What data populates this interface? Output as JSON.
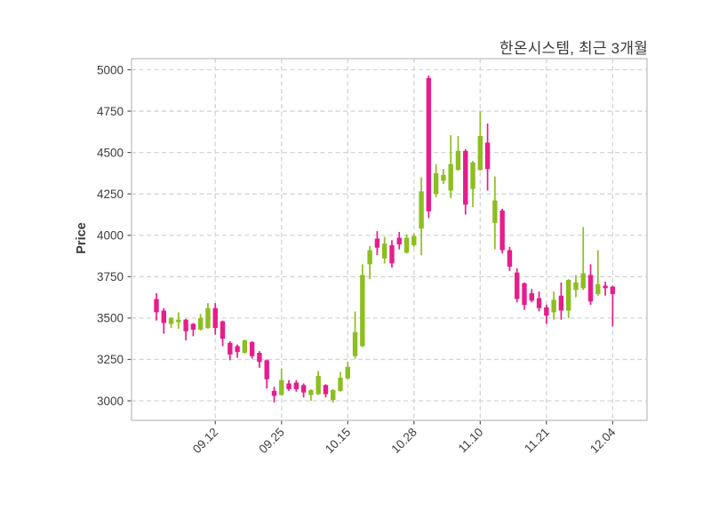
{
  "title": "한온시스템, 최근 3개월",
  "ylabel": "Price",
  "colors": {
    "up": "#8dbe22",
    "down": "#e61d8d",
    "grid": "#d4d4d4",
    "border": "#c9c9c9",
    "tick": "#555555",
    "text": "#3d3d3d",
    "background": "#ffffff"
  },
  "chart_data": {
    "type": "candlestick",
    "title": "한온시스템, 최근 3개월",
    "ylabel": "Price",
    "xlabel": "",
    "grid": true,
    "grid_style": "dashed",
    "ylim": [
      2860,
      5060
    ],
    "yticks": [
      3000,
      3250,
      3500,
      3750,
      4000,
      4250,
      4500,
      4750,
      5000
    ],
    "xtick_labels": [
      "09.12",
      "09.25",
      "10.15",
      "10.28",
      "11.10",
      "11.21",
      "12.04"
    ],
    "xtick_indices": [
      8,
      17,
      26,
      35,
      44,
      53,
      62
    ],
    "up_color_meaning": "close >= open",
    "down_color_meaning": "close < open",
    "ohlc": [
      [
        3615,
        3650,
        3485,
        3535
      ],
      [
        3545,
        3560,
        3405,
        3470
      ],
      [
        3465,
        3505,
        3440,
        3500
      ],
      [
        3475,
        3535,
        3435,
        3490
      ],
      [
        3490,
        3495,
        3365,
        3420
      ],
      [
        3465,
        3470,
        3390,
        3430
      ],
      [
        3430,
        3525,
        3425,
        3500
      ],
      [
        3440,
        3590,
        3435,
        3560
      ],
      [
        3560,
        3590,
        3400,
        3440
      ],
      [
        3480,
        3485,
        3330,
        3375
      ],
      [
        3350,
        3360,
        3245,
        3280
      ],
      [
        3330,
        3340,
        3260,
        3295
      ],
      [
        3290,
        3370,
        3285,
        3365
      ],
      [
        3355,
        3360,
        3255,
        3270
      ],
      [
        3290,
        3300,
        3200,
        3235
      ],
      [
        3245,
        3250,
        3075,
        3130
      ],
      [
        3060,
        3085,
        2990,
        3030
      ],
      [
        3035,
        3195,
        3030,
        3125
      ],
      [
        3105,
        3125,
        3060,
        3070
      ],
      [
        3110,
        3125,
        3055,
        3070
      ],
      [
        3095,
        3105,
        3020,
        3050
      ],
      [
        3035,
        3070,
        3000,
        3065
      ],
      [
        3040,
        3180,
        3035,
        3150
      ],
      [
        3095,
        3100,
        3020,
        3040
      ],
      [
        3005,
        3070,
        2990,
        3065
      ],
      [
        3060,
        3175,
        3055,
        3140
      ],
      [
        3135,
        3235,
        3130,
        3205
      ],
      [
        3270,
        3540,
        3255,
        3415
      ],
      [
        3330,
        3825,
        3325,
        3760
      ],
      [
        3825,
        3935,
        3735,
        3910
      ],
      [
        3980,
        4025,
        3880,
        3925
      ],
      [
        3860,
        3990,
        3830,
        3950
      ],
      [
        3940,
        3970,
        3805,
        3830
      ],
      [
        3985,
        4020,
        3915,
        3945
      ],
      [
        3895,
        4005,
        3890,
        3985
      ],
      [
        3940,
        4010,
        3930,
        3995
      ],
      [
        4040,
        4350,
        3880,
        4265
      ],
      [
        4950,
        4965,
        4105,
        4145
      ],
      [
        4250,
        4430,
        4230,
        4375
      ],
      [
        4330,
        4400,
        4310,
        4365
      ],
      [
        4270,
        4605,
        4225,
        4430
      ],
      [
        4395,
        4600,
        4390,
        4510
      ],
      [
        4510,
        4520,
        4125,
        4185
      ],
      [
        4280,
        4450,
        4170,
        4440
      ],
      [
        4395,
        4750,
        4390,
        4600
      ],
      [
        4560,
        4675,
        4270,
        4400
      ],
      [
        4075,
        4355,
        3915,
        4210
      ],
      [
        4150,
        4160,
        3890,
        3910
      ],
      [
        3910,
        3930,
        3785,
        3810
      ],
      [
        3775,
        3800,
        3595,
        3615
      ],
      [
        3710,
        3715,
        3550,
        3580
      ],
      [
        3650,
        3675,
        3595,
        3605
      ],
      [
        3620,
        3660,
        3540,
        3560
      ],
      [
        3565,
        3580,
        3465,
        3515
      ],
      [
        3535,
        3660,
        3490,
        3610
      ],
      [
        3635,
        3715,
        3490,
        3545
      ],
      [
        3545,
        3735,
        3500,
        3730
      ],
      [
        3670,
        3760,
        3625,
        3715
      ],
      [
        3680,
        4050,
        3670,
        3770
      ],
      [
        3760,
        3825,
        3580,
        3600
      ],
      [
        3645,
        3910,
        3635,
        3705
      ],
      [
        3695,
        3720,
        3635,
        3680
      ],
      [
        3690,
        3695,
        3450,
        3645
      ]
    ]
  }
}
